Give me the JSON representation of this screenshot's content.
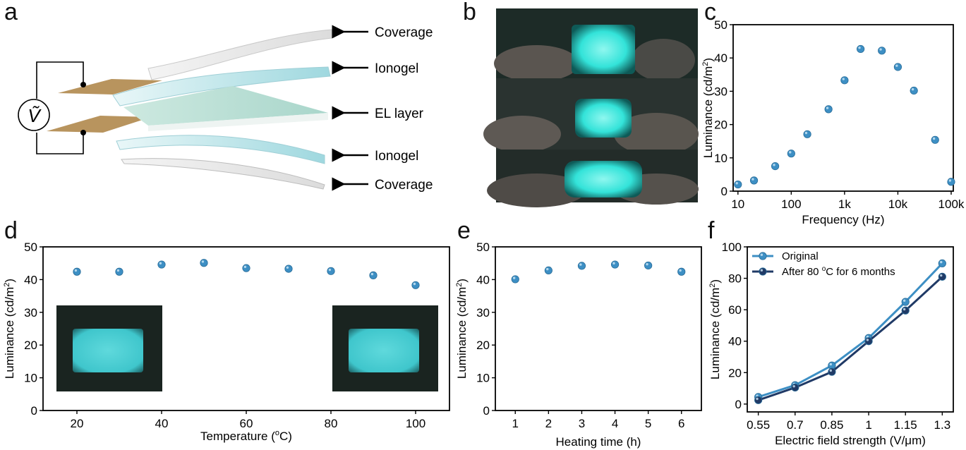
{
  "panels": {
    "a": {
      "letter": "a",
      "labels": [
        "Coverage",
        "Ionogel",
        "EL layer",
        "Ionogel",
        "Coverage"
      ],
      "source_symbol": "Ṽ"
    },
    "b": {
      "letter": "b"
    },
    "c": {
      "letter": "c"
    },
    "d": {
      "letter": "d"
    },
    "e": {
      "letter": "e"
    },
    "f": {
      "letter": "f"
    }
  },
  "colors": {
    "marker": "#3d8fc4",
    "original": "#3d8fc4",
    "aged": "#203a66",
    "glow": "#33e3d9",
    "film": "#a9dbe0",
    "electrode": "#b8945e"
  },
  "chart_data": [
    {
      "id": "c",
      "type": "scatter",
      "xlabel": "Frequency (Hz)",
      "ylabel": "Luminance (cd/m²)",
      "xscale": "log",
      "xlim": [
        10,
        100000
      ],
      "ylim": [
        0,
        50
      ],
      "xticks": [
        10,
        100,
        1000,
        10000,
        100000
      ],
      "xtick_labels": [
        "10",
        "100",
        "1k",
        "10k",
        "100k"
      ],
      "yticks": [
        0,
        10,
        20,
        30,
        40,
        50
      ],
      "x": [
        10,
        20,
        50,
        100,
        200,
        500,
        1000,
        2000,
        5000,
        10000,
        20000,
        50000,
        100000
      ],
      "y": [
        2.0,
        3.2,
        7.5,
        11.3,
        17.1,
        24.6,
        33.3,
        42.7,
        42.2,
        37.3,
        30.2,
        15.4,
        2.8
      ]
    },
    {
      "id": "d",
      "type": "scatter",
      "xlabel": "Temperature (ºC)",
      "ylabel": "Luminance (cd/m²)",
      "xlim": [
        12,
        108
      ],
      "ylim": [
        0,
        50
      ],
      "xticks": [
        20,
        40,
        60,
        80,
        100
      ],
      "yticks": [
        0,
        10,
        20,
        30,
        40,
        50
      ],
      "x": [
        20,
        30,
        40,
        50,
        60,
        70,
        80,
        90,
        100
      ],
      "y": [
        42.4,
        42.4,
        44.6,
        45.1,
        43.5,
        43.3,
        42.6,
        41.3,
        38.3
      ]
    },
    {
      "id": "e",
      "type": "scatter",
      "xlabel": "Heating time (h)",
      "ylabel": "Luminance (cd/m²)",
      "xlim": [
        0.4,
        6.6
      ],
      "ylim": [
        0,
        50
      ],
      "xticks": [
        1,
        2,
        3,
        4,
        5,
        6
      ],
      "yticks": [
        0,
        10,
        20,
        30,
        40,
        50
      ],
      "x": [
        1,
        2,
        3,
        4,
        5,
        6
      ],
      "y": [
        40.1,
        42.8,
        44.2,
        44.6,
        44.3,
        42.4
      ]
    },
    {
      "id": "f",
      "type": "line",
      "xlabel": "Electric field strength (V/μm)",
      "ylabel": "Luminance (cd/m²)",
      "xlim": [
        0.55,
        1.3
      ],
      "ylim": [
        -5,
        100
      ],
      "xticks": [
        0.55,
        0.7,
        0.85,
        1,
        1.15,
        1.3
      ],
      "xtick_labels": [
        "0.55",
        "0.7",
        "0.85",
        "1",
        "1.15",
        "1.3"
      ],
      "yticks": [
        0,
        20,
        40,
        60,
        80,
        100
      ],
      "legend": "top-left",
      "x": [
        0.55,
        0.7,
        0.85,
        1,
        1.15,
        1.3
      ],
      "series": [
        {
          "name": "Original",
          "values": [
            4.5,
            12.0,
            24.5,
            42.0,
            65.0,
            89.5
          ]
        },
        {
          "name": "After 80 ºC for 6 months",
          "values": [
            2.5,
            10.5,
            20.5,
            40.0,
            59.5,
            81.0
          ]
        }
      ]
    }
  ]
}
